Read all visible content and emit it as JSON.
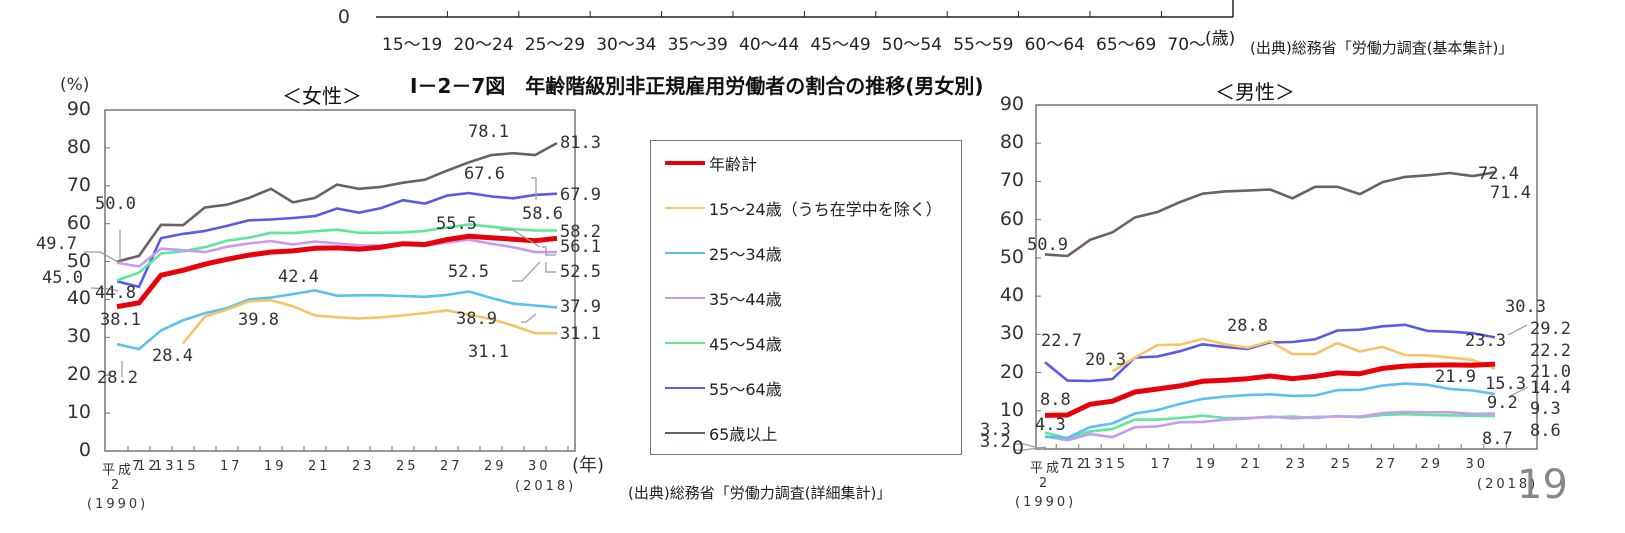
{
  "top_chart_fragment": {
    "y_zero_label": "0",
    "x_ticks": [
      "15～19",
      "20～24",
      "25～29",
      "30～34",
      "35～39",
      "40～44",
      "45～49",
      "50～54",
      "55～59",
      "60～64",
      "65～69",
      "70～"
    ],
    "x_unit": "(歳)",
    "source": "(出典)総務省「労働力調査(基本集計)」"
  },
  "figure_title": "Ⅰ－2－7図　年齢階級別非正規雇用労働者の割合の推移(男女別)",
  "y_unit": "(%)",
  "x_unit": "(年)",
  "x_tick_labels": [
    "平成7",
    "12",
    "13",
    "15",
    "17",
    "19",
    "21",
    "23",
    "25",
    "27",
    "29",
    "30"
  ],
  "x_sub_labels": {
    "start_era": "2",
    "start_year": "(1990)",
    "end_year": "(2018)"
  },
  "legend": {
    "items": [
      {
        "label": "年齢計",
        "color": "#e8000b"
      },
      {
        "label": "15～24歳（うち在学中を除く）",
        "color": "#f5c46a"
      },
      {
        "label": "25～34歳",
        "color": "#5bc0f0"
      },
      {
        "label": "35～44歳",
        "color": "#c99af0"
      },
      {
        "label": "45～54歳",
        "color": "#5ee69a"
      },
      {
        "label": "55～64歳",
        "color": "#5a5ae6"
      },
      {
        "label": "65歳以上",
        "color": "#6e5f62"
      }
    ]
  },
  "source": "(出典)総務省「労働力調査(詳細集計)」",
  "page_number": "19",
  "chart_data": [
    {
      "type": "line",
      "title": "＜女性＞",
      "xlabel": "(年)",
      "ylabel": "(%)",
      "ylim": [
        0,
        90
      ],
      "yticks": [
        0,
        10,
        20,
        30,
        40,
        50,
        60,
        70,
        80,
        90
      ],
      "x": [
        "H2",
        "H7",
        "H12",
        "H13",
        "H14",
        "H15",
        "H16",
        "H17",
        "H18",
        "H19",
        "H20",
        "H21",
        "H22",
        "H23",
        "H24",
        "H25",
        "H26",
        "H27",
        "H28",
        "H29",
        "H30"
      ],
      "series": [
        {
          "name": "年齢計",
          "values": [
            38.1,
            39.1,
            46.4,
            47.7,
            49.3,
            50.6,
            51.7,
            52.5,
            52.8,
            53.5,
            53.6,
            53.3,
            53.8,
            54.7,
            54.5,
            55.8,
            56.7,
            56.3,
            55.9,
            55.5,
            56.1
          ]
        },
        {
          "name": "15～24歳（うち在学中を除く）",
          "values": [
            null,
            null,
            null,
            28.4,
            35.5,
            37.3,
            39.5,
            39.8,
            38.2,
            35.8,
            35.3,
            35.0,
            35.3,
            35.8,
            36.4,
            37.1,
            36.0,
            34.8,
            33.1,
            31.1,
            31.1
          ]
        },
        {
          "name": "25～34歳",
          "values": [
            28.2,
            26.9,
            31.8,
            34.5,
            36.4,
            37.7,
            40.0,
            40.5,
            41.4,
            42.4,
            41.0,
            41.1,
            41.1,
            40.9,
            40.7,
            41.2,
            42.1,
            40.4,
            38.9,
            38.4,
            37.9
          ]
        },
        {
          "name": "35～44歳",
          "values": [
            49.7,
            48.7,
            53.4,
            53.0,
            52.5,
            53.9,
            54.8,
            55.4,
            54.5,
            55.3,
            54.8,
            54.3,
            54.2,
            54.4,
            54.2,
            55.0,
            55.8,
            54.7,
            53.8,
            52.5,
            52.5
          ]
        },
        {
          "name": "45～54歳",
          "values": [
            45.0,
            47.1,
            52.1,
            52.7,
            53.8,
            55.5,
            56.3,
            57.6,
            57.5,
            58.0,
            58.4,
            57.6,
            57.6,
            57.7,
            58.1,
            59.0,
            59.8,
            59.2,
            58.6,
            58.2,
            58.2
          ]
        },
        {
          "name": "55～64歳",
          "values": [
            44.8,
            43.3,
            56.2,
            57.3,
            58.1,
            59.4,
            60.9,
            61.1,
            61.5,
            62.0,
            64.0,
            62.9,
            64.1,
            66.2,
            65.3,
            67.4,
            68.1,
            67.2,
            66.7,
            67.6,
            67.9
          ]
        },
        {
          "name": "65歳以上",
          "values": [
            50.0,
            51.5,
            59.7,
            59.6,
            64.3,
            65.0,
            66.8,
            69.2,
            65.6,
            66.8,
            70.3,
            69.2,
            69.7,
            70.8,
            71.6,
            74.0,
            76.2,
            78.1,
            78.6,
            78.1,
            81.3
          ]
        }
      ],
      "annotations": [
        "50.0",
        "49.7",
        "45.0",
        "44.8",
        "38.1",
        "28.2",
        "28.4",
        "39.8",
        "42.4",
        "78.1",
        "67.6",
        "58.6",
        "55.5",
        "52.5",
        "38.9",
        "31.1",
        "81.3",
        "67.9",
        "58.2",
        "56.1",
        "52.5",
        "37.9",
        "31.1"
      ]
    },
    {
      "type": "line",
      "title": "＜男性＞",
      "xlabel": "(年)",
      "ylabel": "(%)",
      "ylim": [
        0,
        90
      ],
      "yticks": [
        0,
        10,
        20,
        30,
        40,
        50,
        60,
        70,
        80,
        90
      ],
      "x": [
        "H2",
        "H7",
        "H12",
        "H13",
        "H14",
        "H15",
        "H16",
        "H17",
        "H18",
        "H19",
        "H20",
        "H21",
        "H22",
        "H23",
        "H24",
        "H25",
        "H26",
        "H27",
        "H28",
        "H29",
        "H30"
      ],
      "series": [
        {
          "name": "年齢計",
          "values": [
            8.8,
            8.9,
            11.7,
            12.5,
            14.9,
            15.7,
            16.5,
            17.7,
            18.0,
            18.4,
            19.1,
            18.4,
            19.0,
            19.9,
            19.7,
            21.1,
            21.7,
            21.9,
            22.0,
            21.9,
            22.2
          ]
        },
        {
          "name": "15～24歳（うち在学中を除く）",
          "values": [
            null,
            null,
            null,
            20.3,
            23.9,
            27.2,
            27.3,
            28.8,
            27.4,
            26.5,
            28.2,
            24.8,
            24.8,
            27.7,
            25.5,
            26.7,
            24.6,
            24.5,
            23.9,
            23.3,
            21.0
          ]
        },
        {
          "name": "25～34歳",
          "values": [
            3.2,
            2.9,
            5.7,
            6.7,
            9.3,
            10.2,
            11.8,
            13.1,
            13.7,
            14.1,
            14.3,
            13.9,
            14.0,
            15.4,
            15.5,
            16.6,
            17.1,
            16.8,
            15.7,
            15.3,
            14.4
          ]
        },
        {
          "name": "35～44歳",
          "values": [
            3.3,
            2.3,
            3.9,
            3.1,
            5.7,
            5.9,
            7.0,
            7.1,
            7.7,
            8.0,
            8.5,
            8.0,
            8.4,
            8.5,
            8.5,
            9.4,
            9.7,
            9.6,
            9.6,
            9.2,
            9.3
          ]
        },
        {
          "name": "45～54歳",
          "values": [
            4.3,
            2.8,
            4.6,
            5.2,
            7.7,
            7.7,
            8.1,
            8.7,
            8.1,
            8.1,
            8.3,
            8.5,
            8.1,
            8.6,
            8.3,
            8.9,
            9.1,
            8.9,
            8.8,
            8.7,
            8.6
          ]
        },
        {
          "name": "55～64歳",
          "values": [
            22.7,
            17.9,
            17.8,
            18.3,
            23.9,
            24.2,
            25.6,
            27.4,
            26.7,
            26.2,
            27.9,
            28.0,
            28.7,
            31.0,
            31.2,
            32.1,
            32.5,
            30.9,
            30.7,
            30.3,
            29.2
          ]
        },
        {
          "name": "65歳以上",
          "values": [
            50.9,
            50.5,
            54.7,
            56.7,
            60.6,
            62.0,
            64.6,
            66.8,
            67.4,
            67.6,
            67.9,
            65.6,
            68.6,
            68.6,
            66.7,
            69.8,
            71.2,
            71.6,
            72.2,
            71.4,
            72.4
          ]
        }
      ],
      "annotations": [
        "50.9",
        "22.7",
        "20.3",
        "28.8",
        "8.8",
        "4.3",
        "3.3",
        "3.2",
        "30.3",
        "29.2",
        "23.3",
        "22.2",
        "21.9",
        "21.0",
        "15.3",
        "14.4",
        "9.2",
        "9.3",
        "8.7",
        "8.6",
        "71.4",
        "72.4"
      ]
    }
  ]
}
